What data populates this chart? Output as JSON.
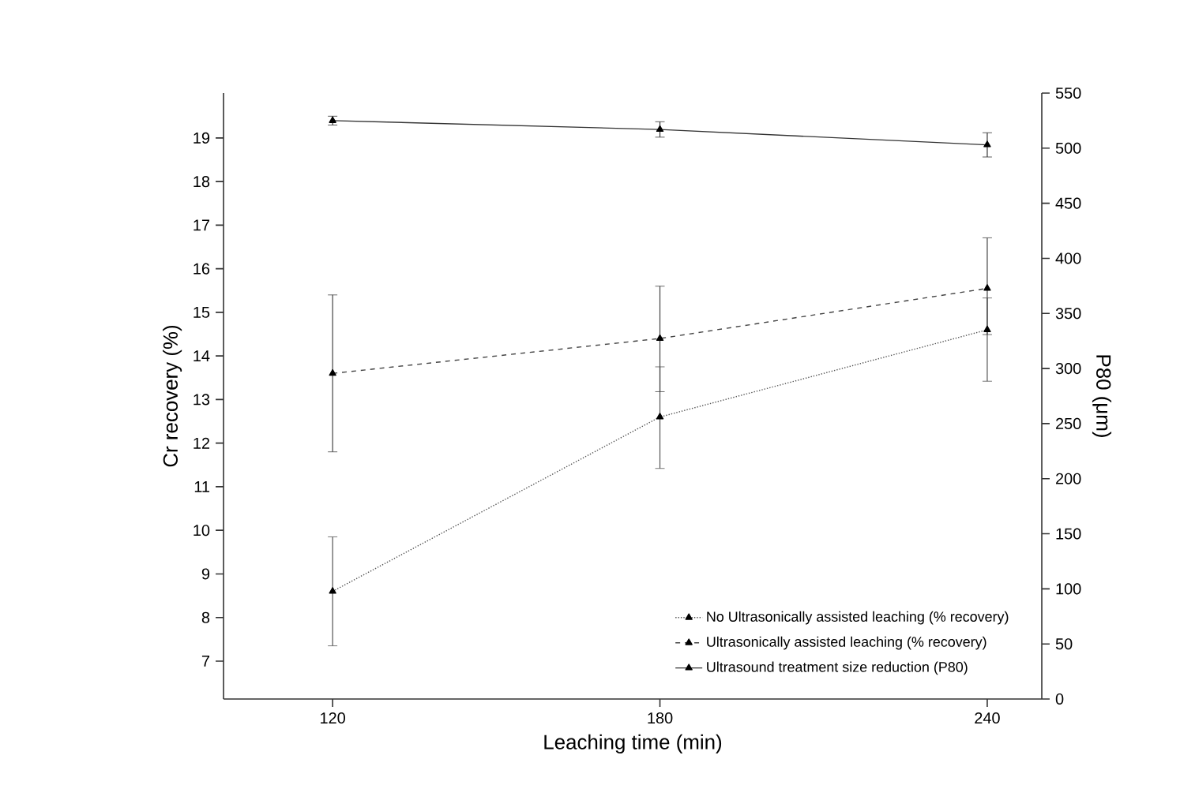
{
  "chart_data": {
    "type": "line",
    "xlabel": "Leaching time (min)",
    "ylabel": "Cr recovery (%)",
    "y2label": "P80 (μm)",
    "x": [
      120,
      180,
      240
    ],
    "xlim": [
      100,
      250
    ],
    "xticks": [
      120,
      180,
      240
    ],
    "ylim": [
      6.13,
      20.03
    ],
    "yticks": [
      7,
      8,
      9,
      10,
      11,
      12,
      13,
      14,
      15,
      16,
      17,
      18,
      19
    ],
    "y2lim": [
      0,
      550
    ],
    "y2ticks": [
      0,
      50,
      100,
      150,
      200,
      250,
      300,
      350,
      400,
      450,
      500,
      550
    ],
    "series": [
      {
        "name": "No Ultrasonically assisted leaching (% recovery)",
        "color": "#555555",
        "line_style": "dotted",
        "values": [
          8.6,
          12.6,
          14.6
        ],
        "errors": [
          [
            7.35,
            9.85
          ],
          [
            11.42,
            13.75
          ],
          [
            13.42,
            15.33
          ]
        ]
      },
      {
        "name": "Ultrasonically assisted leaching (% recovery)",
        "color": "#444444",
        "line_style": "dashed",
        "values": [
          13.6,
          14.4,
          15.55
        ],
        "errors": [
          [
            11.8,
            15.4
          ],
          [
            13.18,
            15.6
          ],
          [
            14.49,
            16.71
          ]
        ]
      },
      {
        "name": "Ultrasound treatment size reduction (P80)",
        "color": "#333333",
        "line_style": "solid",
        "axis": "y2",
        "values": [
          525,
          517,
          503
        ],
        "errors": [
          [
            521,
            529
          ],
          [
            510,
            524
          ],
          [
            492,
            514
          ]
        ]
      }
    ],
    "marker": "triangle",
    "grid": false,
    "legend": "bottom right"
  }
}
